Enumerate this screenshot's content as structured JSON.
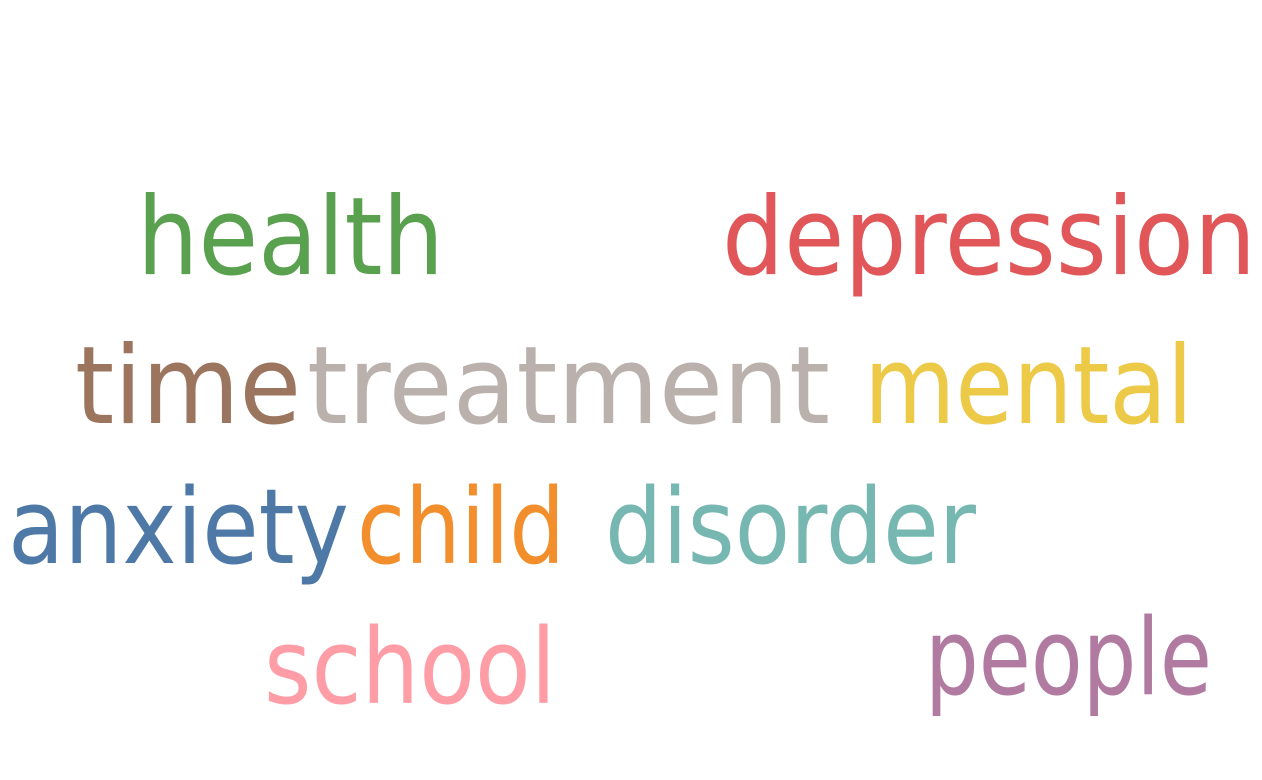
{
  "words": [
    {
      "text": "health",
      "color": "#59a14f"
    },
    {
      "text": "depression",
      "color": "#e15759"
    },
    {
      "text": "time",
      "color": "#9c755f"
    },
    {
      "text": "treatment",
      "color": "#bab0ac"
    },
    {
      "text": "mental",
      "color": "#edc948"
    },
    {
      "text": "anxiety",
      "color": "#4e79a7"
    },
    {
      "text": "child",
      "color": "#f28e2b"
    },
    {
      "text": "disorder",
      "color": "#76b7b2"
    },
    {
      "text": "school",
      "color": "#ff9da7"
    },
    {
      "text": "people",
      "color": "#b07aa1"
    }
  ]
}
